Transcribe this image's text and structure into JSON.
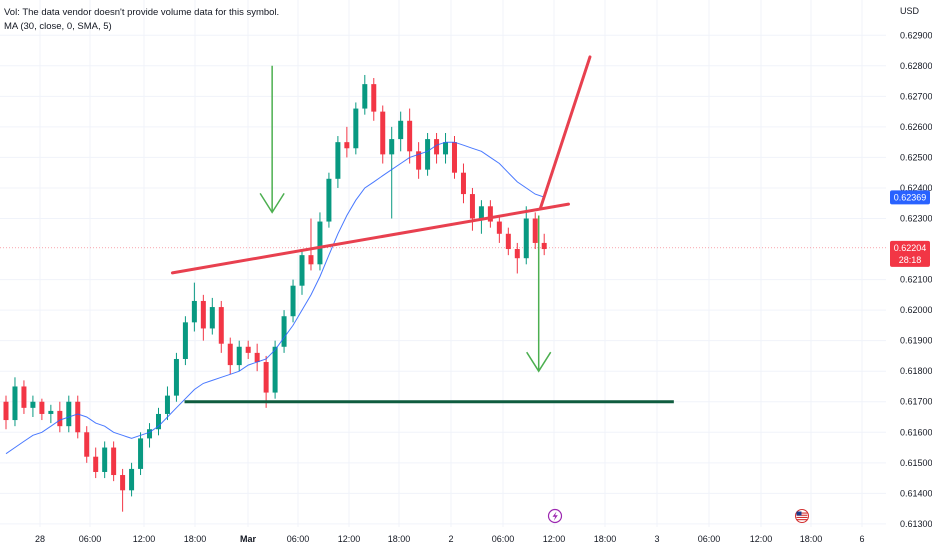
{
  "legend": {
    "vol_line": "Vol: The data vendor doesn't provide volume data for this symbol.",
    "ma_line": "MA (30, close, 0, SMA, 5)"
  },
  "chart_data": {
    "type": "candlestick",
    "currency": "USD",
    "y_ticks": [
      "0.62900",
      "0.62800",
      "0.62700",
      "0.62600",
      "0.62500",
      "0.62400",
      "0.62300",
      "0.62100",
      "0.62000",
      "0.61900",
      "0.61800",
      "0.61700",
      "0.61600",
      "0.61500",
      "0.61400",
      "0.61300"
    ],
    "x_ticks": [
      "28",
      "06:00",
      "12:00",
      "18:00",
      "Mar",
      "06:00",
      "12:00",
      "18:00",
      "2",
      "06:00",
      "12:00",
      "18:00",
      "3",
      "06:00",
      "12:00",
      "18:00",
      "6"
    ],
    "ylim": [
      0.6128,
      0.6295
    ],
    "ma_value": "0.62369",
    "last_price": "0.62204",
    "countdown": "28:18",
    "colors": {
      "up": "#089981",
      "down": "#f23645",
      "ma": "#2962ff",
      "trendline": "#e8404f",
      "arrow": "#4caf50",
      "support": "#0f5c3f",
      "ma_tag": "#2962ff",
      "price_tag": "#f23645"
    },
    "candles": [
      [
        0.617,
        0.6172,
        0.6161,
        0.6164
      ],
      [
        0.6164,
        0.6178,
        0.6162,
        0.6175
      ],
      [
        0.6175,
        0.6177,
        0.6166,
        0.6168
      ],
      [
        0.6168,
        0.6172,
        0.6165,
        0.617
      ],
      [
        0.617,
        0.6171,
        0.6164,
        0.6166
      ],
      [
        0.6166,
        0.6169,
        0.6163,
        0.6167
      ],
      [
        0.6167,
        0.617,
        0.616,
        0.6162
      ],
      [
        0.6162,
        0.6172,
        0.616,
        0.617
      ],
      [
        0.617,
        0.6172,
        0.6158,
        0.616
      ],
      [
        0.616,
        0.6162,
        0.615,
        0.6152
      ],
      [
        0.6152,
        0.6155,
        0.6145,
        0.6147
      ],
      [
        0.6147,
        0.6157,
        0.6145,
        0.6155
      ],
      [
        0.6155,
        0.6157,
        0.6144,
        0.6146
      ],
      [
        0.6146,
        0.6148,
        0.6134,
        0.6141
      ],
      [
        0.6141,
        0.615,
        0.6139,
        0.6148
      ],
      [
        0.6148,
        0.616,
        0.6146,
        0.6158
      ],
      [
        0.6158,
        0.6163,
        0.6155,
        0.6161
      ],
      [
        0.6161,
        0.6168,
        0.6159,
        0.6166
      ],
      [
        0.6166,
        0.6175,
        0.6164,
        0.6172
      ],
      [
        0.6172,
        0.6186,
        0.617,
        0.6184
      ],
      [
        0.6184,
        0.6198,
        0.6182,
        0.6196
      ],
      [
        0.6196,
        0.6209,
        0.6193,
        0.6203
      ],
      [
        0.6203,
        0.6205,
        0.619,
        0.6194
      ],
      [
        0.6194,
        0.6204,
        0.6192,
        0.6201
      ],
      [
        0.6201,
        0.6203,
        0.6186,
        0.6189
      ],
      [
        0.6189,
        0.6191,
        0.6179,
        0.6182
      ],
      [
        0.6182,
        0.619,
        0.618,
        0.6188
      ],
      [
        0.6188,
        0.619,
        0.6184,
        0.6186
      ],
      [
        0.6186,
        0.6189,
        0.618,
        0.6183
      ],
      [
        0.6183,
        0.6185,
        0.6168,
        0.6173
      ],
      [
        0.6173,
        0.619,
        0.6171,
        0.6188
      ],
      [
        0.6188,
        0.62,
        0.6186,
        0.6198
      ],
      [
        0.6198,
        0.621,
        0.6196,
        0.6208
      ],
      [
        0.6208,
        0.622,
        0.6205,
        0.6218
      ],
      [
        0.6218,
        0.623,
        0.6213,
        0.6215
      ],
      [
        0.6215,
        0.6232,
        0.6213,
        0.6229
      ],
      [
        0.6229,
        0.6245,
        0.6227,
        0.6243
      ],
      [
        0.6243,
        0.6257,
        0.624,
        0.6255
      ],
      [
        0.6255,
        0.626,
        0.625,
        0.6253
      ],
      [
        0.6253,
        0.6268,
        0.6251,
        0.6266
      ],
      [
        0.6266,
        0.6277,
        0.6264,
        0.6274
      ],
      [
        0.6274,
        0.6276,
        0.6262,
        0.6265
      ],
      [
        0.6265,
        0.6267,
        0.6248,
        0.6251
      ],
      [
        0.6251,
        0.626,
        0.623,
        0.6256
      ],
      [
        0.6256,
        0.6265,
        0.6252,
        0.6262
      ],
      [
        0.6262,
        0.6266,
        0.6248,
        0.6252
      ],
      [
        0.6252,
        0.6255,
        0.6243,
        0.6246
      ],
      [
        0.6246,
        0.6258,
        0.6244,
        0.6256
      ],
      [
        0.6256,
        0.6258,
        0.6248,
        0.6251
      ],
      [
        0.6251,
        0.6258,
        0.6248,
        0.6255
      ],
      [
        0.6255,
        0.6257,
        0.6243,
        0.6245
      ],
      [
        0.6245,
        0.6248,
        0.6235,
        0.6238
      ],
      [
        0.6238,
        0.624,
        0.6226,
        0.623
      ],
      [
        0.623,
        0.6236,
        0.6225,
        0.6234
      ],
      [
        0.6234,
        0.6236,
        0.6227,
        0.6229
      ],
      [
        0.6229,
        0.6231,
        0.6222,
        0.6225
      ],
      [
        0.6225,
        0.6227,
        0.6218,
        0.622
      ],
      [
        0.622,
        0.6222,
        0.6212,
        0.6217
      ],
      [
        0.6217,
        0.6234,
        0.6215,
        0.623
      ],
      [
        0.623,
        0.6232,
        0.622,
        0.6222
      ],
      [
        0.6222,
        0.6225,
        0.6218,
        0.622
      ]
    ],
    "moving_average": [
      0.6153,
      0.6155,
      0.6157,
      0.6159,
      0.616,
      0.6162,
      0.6164,
      0.6165,
      0.6166,
      0.6165,
      0.6163,
      0.6162,
      0.616,
      0.6159,
      0.6158,
      0.6159,
      0.616,
      0.6162,
      0.6165,
      0.6168,
      0.6171,
      0.6174,
      0.6176,
      0.6177,
      0.6178,
      0.6179,
      0.618,
      0.6182,
      0.6183,
      0.6184,
      0.6187,
      0.6191,
      0.6195,
      0.62,
      0.6205,
      0.6211,
      0.6218,
      0.6225,
      0.6231,
      0.6236,
      0.624,
      0.6242,
      0.6244,
      0.6246,
      0.6248,
      0.625,
      0.6251,
      0.6252,
      0.6254,
      0.6255,
      0.6255,
      0.6254,
      0.6253,
      0.6252,
      0.625,
      0.6248,
      0.6245,
      0.6242,
      0.624,
      0.6238,
      0.6237
    ],
    "trendlines": [
      {
        "name": "descending-resistance",
        "from": [
          0.633,
          0.62829
        ],
        "to": [
          0.58,
          0.62335
        ]
      },
      {
        "name": "ascending-support",
        "from": [
          0.185,
          0.62122
        ],
        "to": [
          0.61,
          0.62347
        ]
      }
    ],
    "support_level": {
      "price": 0.617,
      "from": 0.198,
      "to": 0.723
    },
    "arrows": [
      {
        "name": "down-arrow-left",
        "x": 0.292,
        "from_price": 0.628,
        "to_price": 0.6232
      },
      {
        "name": "down-arrow-right",
        "x": 0.578,
        "from_price": 0.6231,
        "to_price": 0.618
      }
    ],
    "event_icons": [
      "lightning-icon",
      "us-flag-icon"
    ]
  }
}
